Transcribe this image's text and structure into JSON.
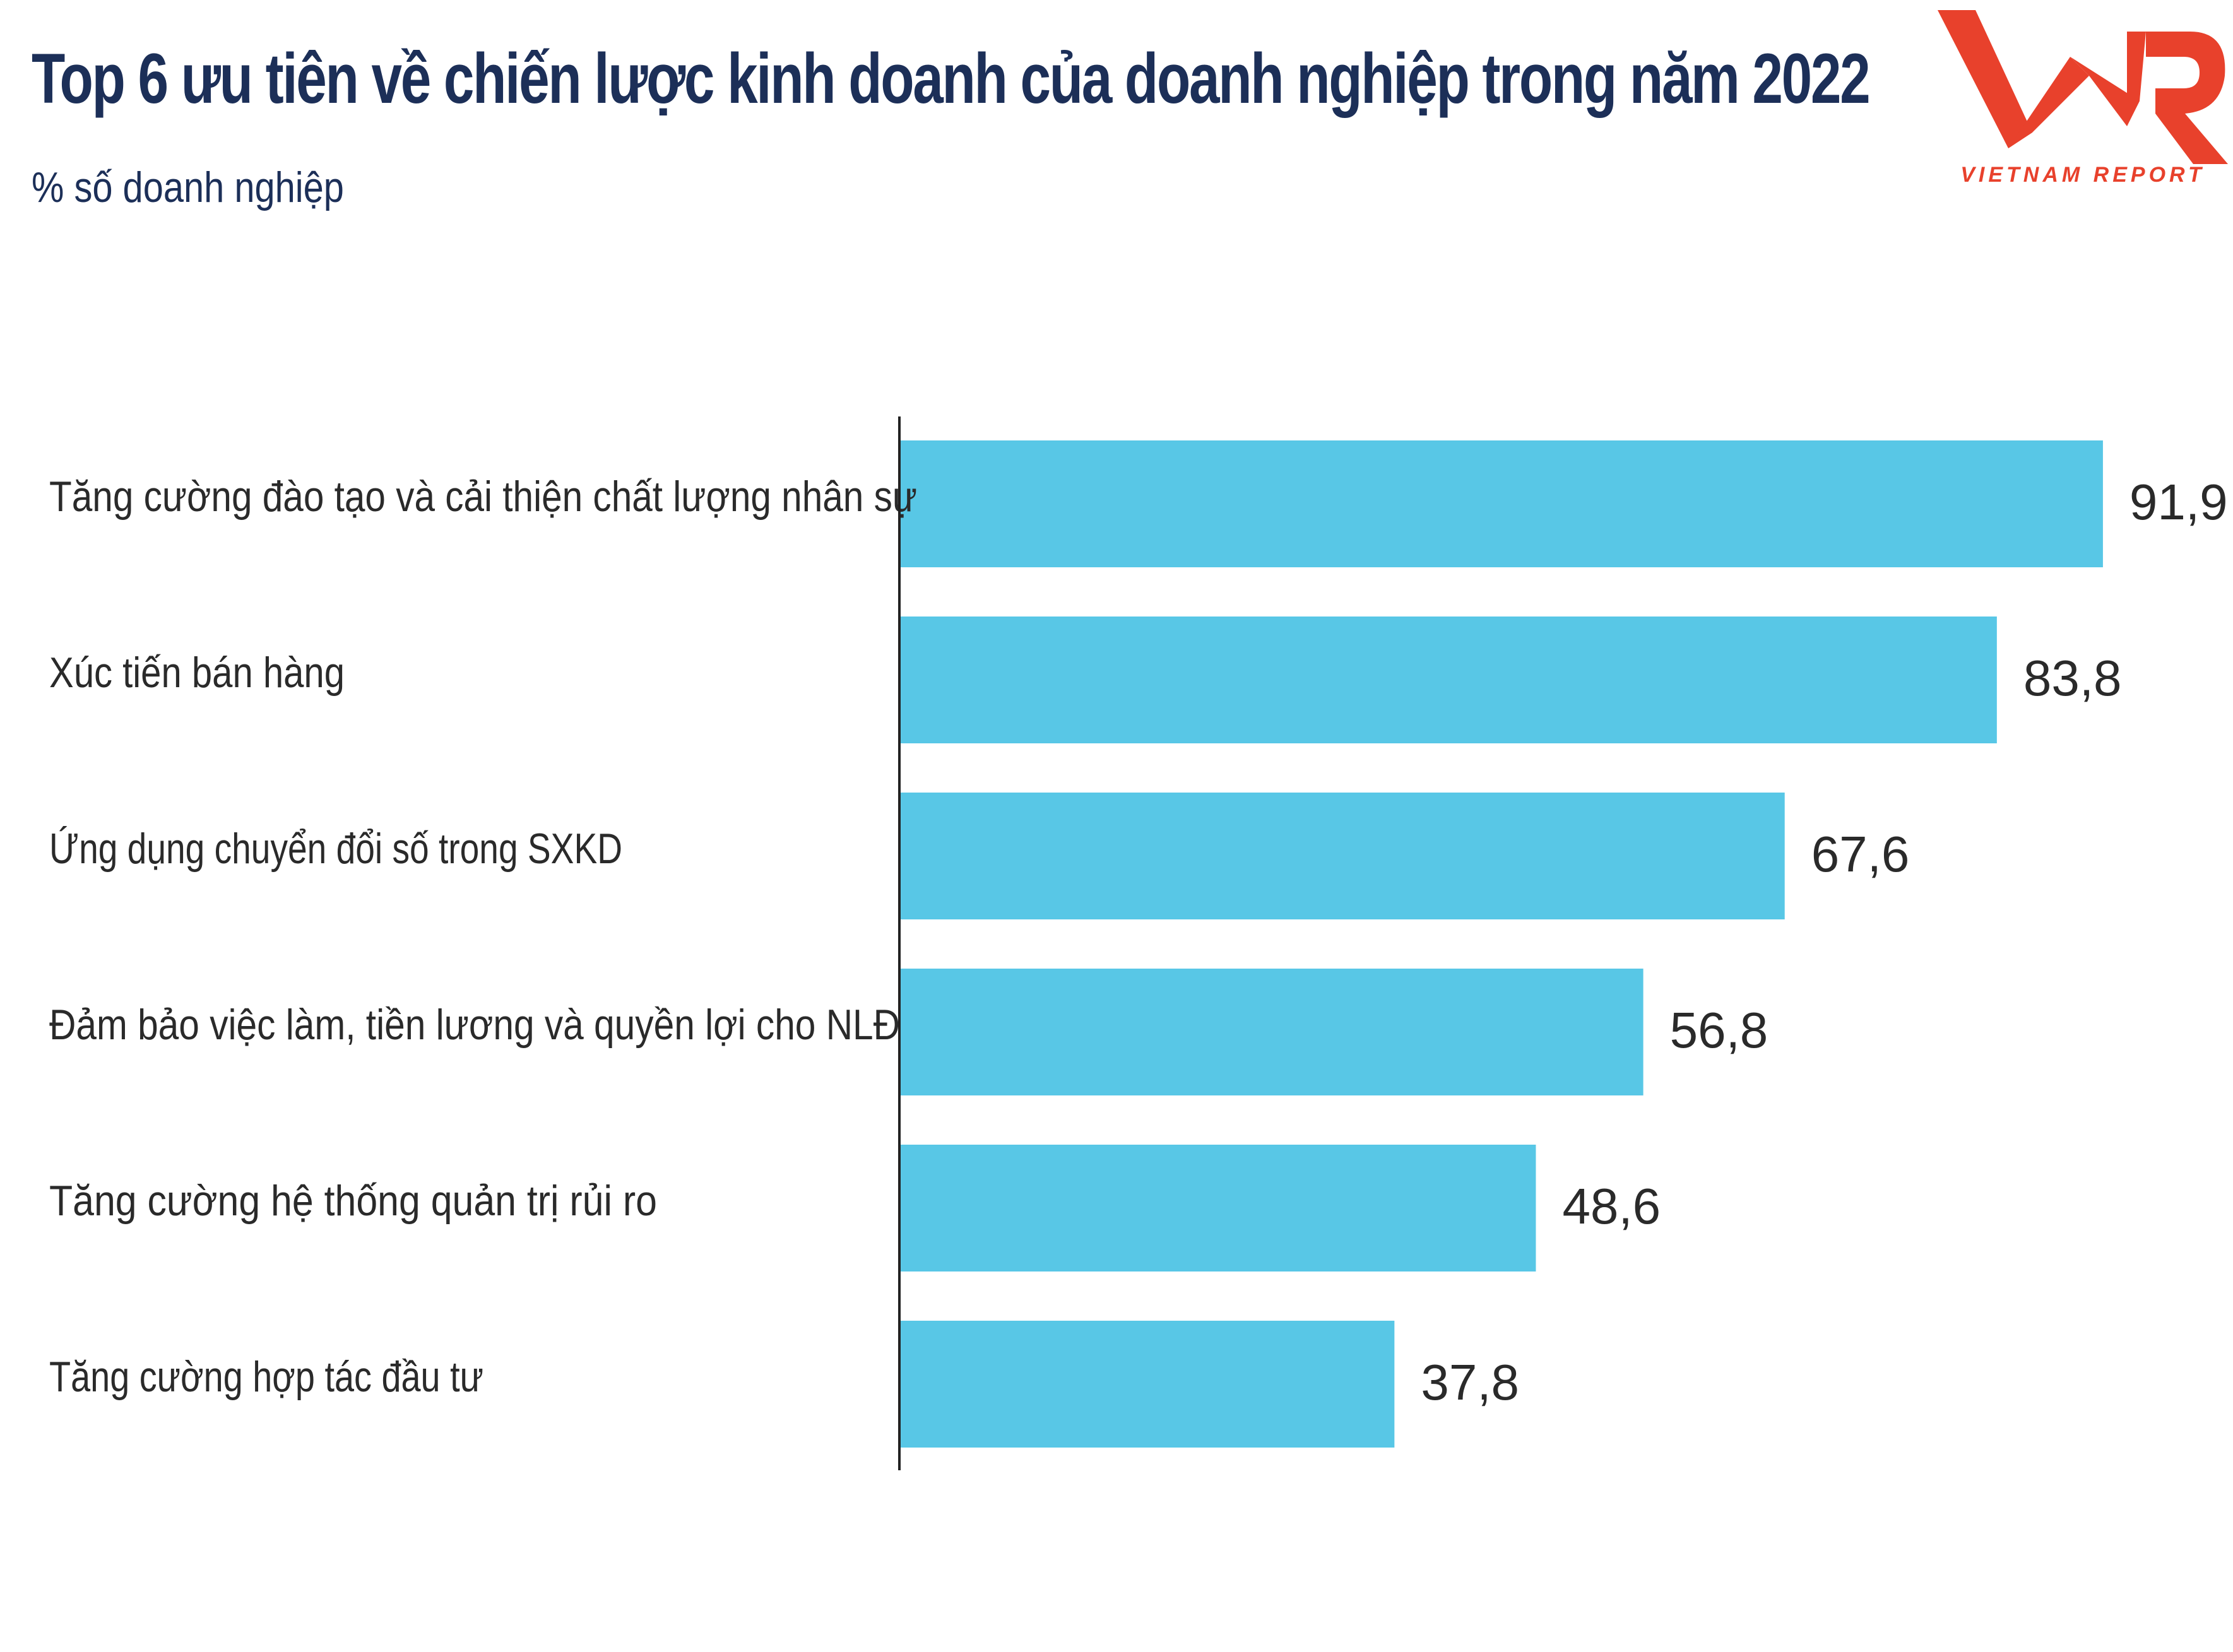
{
  "header": {
    "title": "Top 6 ưu tiên về chiến lược kinh doanh của doanh nghiệp trong năm 2022",
    "subtitle": "% số doanh nghiệp"
  },
  "logo": {
    "mark": "VNR",
    "text": "VIETNAM REPORT",
    "color": "#e8412c"
  },
  "chart_data": {
    "type": "bar",
    "orientation": "horizontal",
    "title": "Top 6 ưu tiên về chiến lược kinh doanh của doanh nghiệp trong năm 2022",
    "subtitle": "% số doanh nghiệp",
    "xlabel": "",
    "ylabel": "",
    "xlim": [
      0,
      100
    ],
    "grid": false,
    "bar_color": "#58c7e6",
    "categories": [
      "Tăng cường đào tạo và cải thiện chất lượng nhân sự",
      "Xúc tiến bán hàng",
      "Ứng dụng chuyển đổi số trong SXKD",
      "Đảm bảo việc làm, tiền lương và quyền lợi cho NLĐ",
      "Tăng cường hệ thống quản trị rủi ro",
      "Tăng cường hợp tác đầu tư"
    ],
    "values": [
      91.9,
      83.8,
      67.6,
      56.8,
      48.6,
      37.8
    ],
    "value_labels": [
      "91,9",
      "83,8",
      "67,6",
      "56,8",
      "48,6",
      "37,8"
    ]
  }
}
